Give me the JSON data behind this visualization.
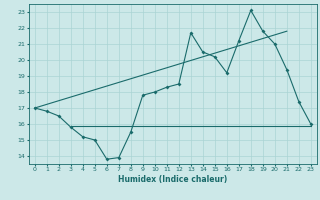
{
  "xlabel": "Humidex (Indice chaleur)",
  "ylabel": "",
  "bg_color": "#cce8e8",
  "grid_color": "#aad4d4",
  "line_color": "#1a6b6b",
  "xlim": [
    -0.5,
    23.5
  ],
  "ylim": [
    13.5,
    23.5
  ],
  "xticks": [
    0,
    1,
    2,
    3,
    4,
    5,
    6,
    7,
    8,
    9,
    10,
    11,
    12,
    13,
    14,
    15,
    16,
    17,
    18,
    19,
    20,
    21,
    22,
    23
  ],
  "yticks": [
    14,
    15,
    16,
    17,
    18,
    19,
    20,
    21,
    22,
    23
  ],
  "line1_x": [
    0,
    1,
    2,
    3,
    4,
    5,
    6,
    7,
    8,
    9,
    10,
    11,
    12,
    13,
    14,
    15,
    16,
    17,
    18,
    19,
    20,
    21,
    22,
    23
  ],
  "line1_y": [
    17.0,
    16.8,
    16.5,
    15.8,
    15.2,
    15.0,
    13.8,
    13.9,
    15.5,
    17.8,
    18.0,
    18.3,
    18.5,
    21.7,
    20.5,
    20.2,
    19.2,
    21.2,
    23.1,
    21.8,
    21.0,
    19.4,
    17.4,
    16.0
  ],
  "line2_x": [
    3,
    23
  ],
  "line2_y": [
    15.9,
    15.9
  ],
  "line3_x": [
    0,
    21
  ],
  "line3_y": [
    17.0,
    21.8
  ]
}
